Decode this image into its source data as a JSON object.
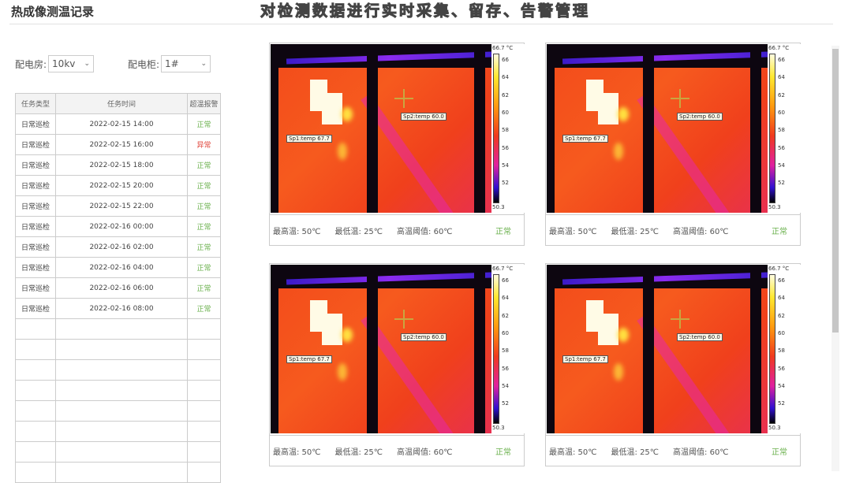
{
  "page": {
    "title": "热成像测温记录"
  },
  "filters": {
    "room_label": "配电房:",
    "room_value": "10kv",
    "cabinet_label": "配电柜:",
    "cabinet_value": "1#"
  },
  "table": {
    "headers": [
      "任务类型",
      "任务时间",
      "超温报警"
    ],
    "rows": [
      [
        "日常巡检",
        "2022-02-15 14:00",
        "正常"
      ],
      [
        "日常巡检",
        "2022-02-15 16:00",
        "异常"
      ],
      [
        "日常巡检",
        "2022-02-15 18:00",
        "正常"
      ],
      [
        "日常巡检",
        "2022-02-15 20:00",
        "正常"
      ],
      [
        "日常巡检",
        "2022-02-15 22:00",
        "正常"
      ],
      [
        "日常巡检",
        "2022-02-16 00:00",
        "正常"
      ],
      [
        "日常巡检",
        "2022-02-16 02:00",
        "正常"
      ],
      [
        "日常巡检",
        "2022-02-16 04:00",
        "正常"
      ],
      [
        "日常巡检",
        "2022-02-16 06:00",
        "正常"
      ],
      [
        "日常巡检",
        "2022-02-16 08:00",
        "正常"
      ]
    ],
    "status_colors": {
      "正常": "#6ab04c",
      "异常": "#e0443a"
    }
  },
  "scale": {
    "max": "66.7 °C",
    "min": "50.3",
    "ticks": [
      "66",
      "64",
      "62",
      "60",
      "58",
      "56",
      "54",
      "52"
    ]
  },
  "cards": [
    {
      "sp1": "Sp1:temp 67.7",
      "sp2": "Sp2:temp 60.0",
      "max": "最高温: 50℃",
      "min": "最低温: 25℃",
      "threshold": "高温阈值: 60℃",
      "status": "正常"
    },
    {
      "sp1": "Sp1:temp 67.7",
      "sp2": "Sp2:temp 60.0",
      "max": "最高温: 50℃",
      "min": "最低温: 25℃",
      "threshold": "高温阈值: 60℃",
      "status": "正常"
    },
    {
      "sp1": "Sp1:temp 67.7",
      "sp2": "Sp2:temp 60.0",
      "max": "最高温: 50℃",
      "min": "最低温: 25℃",
      "threshold": "高温阈值: 60℃",
      "status": "正常"
    },
    {
      "sp1": "Sp1:temp 67.7",
      "sp2": "Sp2:temp 60.0",
      "max": "最高温: 50℃",
      "min": "最低温: 25℃",
      "threshold": "高温阈值: 60℃",
      "status": "正常"
    }
  ],
  "subtitle": "对检测数据进行实时采集、留存、告警管理"
}
